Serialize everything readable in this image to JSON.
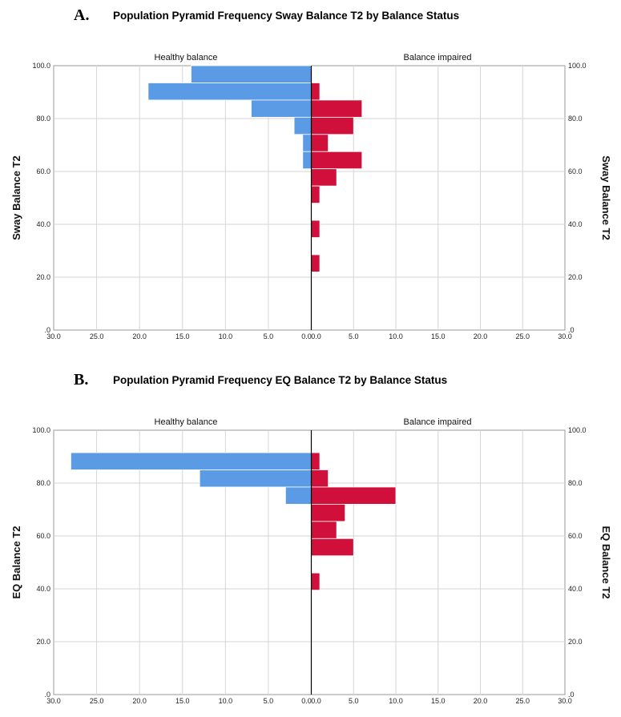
{
  "colors": {
    "left_series": "#5b9be6",
    "right_series": "#d0103a",
    "grid": "#d6d6d6",
    "center_line": "#000000"
  },
  "chart_data": [
    {
      "type": "bar",
      "letter": "A.",
      "title": "Population Pyramid Frequency Sway Balance T2  by Balance Status",
      "ylabel": "Sway Balance T2",
      "ylim": [
        0,
        100
      ],
      "yticks": [
        ".0",
        "20.0",
        "40.0",
        "60.0",
        "80.0",
        "100.0"
      ],
      "xlim": [
        0,
        30
      ],
      "xticks": [
        "30.0",
        "25.0",
        "20.0",
        "15.0",
        "10.0",
        "5.0",
        "0.0",
        "0.0",
        "5.0",
        "10.0",
        "15.0",
        "20.0",
        "25.0",
        "30.0"
      ],
      "bin_width": 6.5,
      "series": [
        {
          "name": "Healthy balance",
          "side": "left",
          "bins": [
            {
              "start": 93.5,
              "value": 14
            },
            {
              "start": 87,
              "value": 19
            },
            {
              "start": 80.5,
              "value": 7
            },
            {
              "start": 74,
              "value": 2
            },
            {
              "start": 67.5,
              "value": 1
            },
            {
              "start": 61,
              "value": 1
            }
          ]
        },
        {
          "name": "Balance impaired",
          "side": "right",
          "bins": [
            {
              "start": 87,
              "value": 1
            },
            {
              "start": 80.5,
              "value": 6
            },
            {
              "start": 74,
              "value": 5
            },
            {
              "start": 67.5,
              "value": 2
            },
            {
              "start": 61,
              "value": 6
            },
            {
              "start": 54.5,
              "value": 3
            },
            {
              "start": 48,
              "value": 1
            },
            {
              "start": 35,
              "value": 1
            },
            {
              "start": 22,
              "value": 1
            }
          ]
        }
      ]
    },
    {
      "type": "bar",
      "letter": "B.",
      "title": "Population Pyramid Frequency EQ Balance T2  by Balance Status",
      "ylabel": "EQ Balance T2",
      "ylim": [
        0,
        100
      ],
      "yticks": [
        ".0",
        "20.0",
        "40.0",
        "60.0",
        "80.0",
        "100.0"
      ],
      "xlim": [
        0,
        30
      ],
      "xticks": [
        "30.0",
        "25.0",
        "20.0",
        "15.0",
        "10.0",
        "5.0",
        "0.0",
        "0.0",
        "5.0",
        "10.0",
        "15.0",
        "20.0",
        "25.0",
        "30.0"
      ],
      "bin_width": 6.5,
      "series": [
        {
          "name": "Healthy balance",
          "side": "left",
          "bins": [
            {
              "start": 85,
              "value": 28
            },
            {
              "start": 78.5,
              "value": 13
            },
            {
              "start": 72,
              "value": 3
            }
          ]
        },
        {
          "name": "Balance impaired",
          "side": "right",
          "bins": [
            {
              "start": 85,
              "value": 1
            },
            {
              "start": 78.5,
              "value": 2
            },
            {
              "start": 72,
              "value": 10
            },
            {
              "start": 65.5,
              "value": 4
            },
            {
              "start": 59,
              "value": 3
            },
            {
              "start": 52.5,
              "value": 5
            },
            {
              "start": 39.5,
              "value": 1
            }
          ]
        }
      ]
    }
  ]
}
